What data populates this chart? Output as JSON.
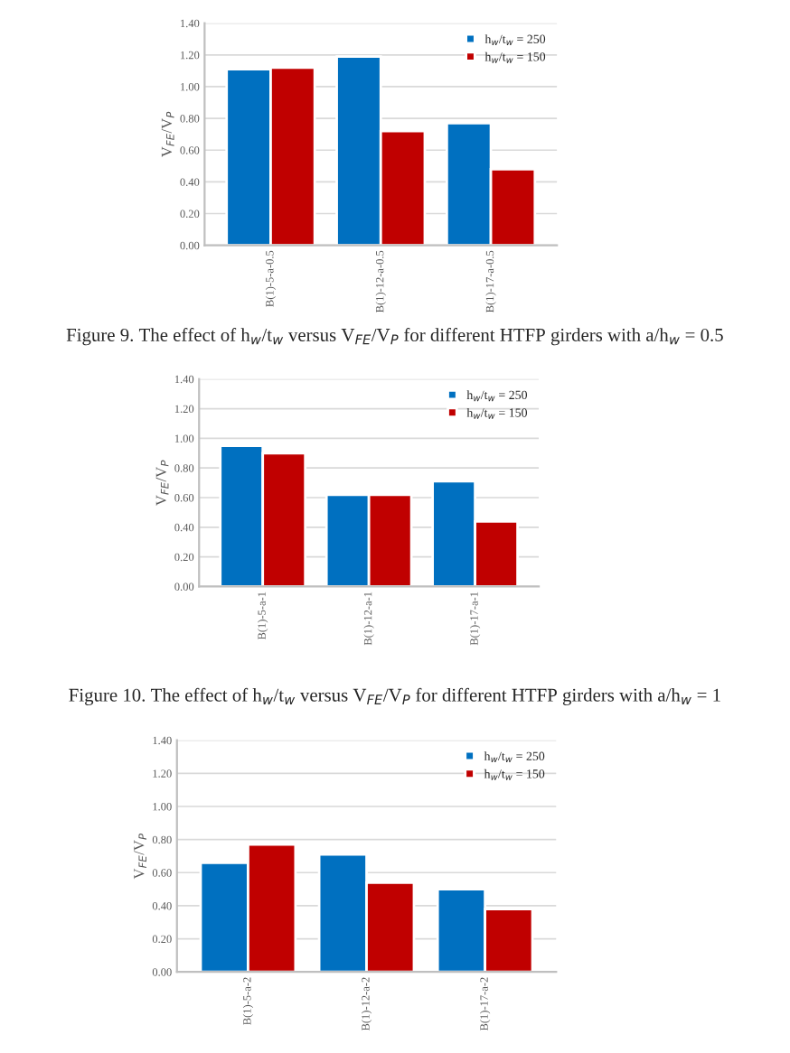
{
  "chart_data": [
    {
      "type": "bar",
      "ylabel": "V$_{FE}$/V$_{P}$",
      "categories": [
        "B(1)-5-a-0.5",
        "B(1)-12-a-0.5",
        "B(1)-17-a-0.5"
      ],
      "series": [
        {
          "name": "h$_{w}$/t$_{w}$ = 250",
          "color": "#0070c0",
          "values": [
            1.11,
            1.19,
            0.77
          ]
        },
        {
          "name": "h$_{w}$/t$_{w}$ = 150",
          "color": "#c00000",
          "values": [
            1.12,
            0.72,
            0.48
          ]
        }
      ],
      "ylim": [
        0,
        1.4
      ],
      "yticks": [
        {
          "value": 0,
          "label": "0.00"
        },
        {
          "value": 0.2,
          "label": "0.20"
        },
        {
          "value": 0.4,
          "label": "0.40"
        },
        {
          "value": 0.6,
          "label": "0.60"
        },
        {
          "value": 0.8,
          "label": "0.80"
        },
        {
          "value": 1.0,
          "label": "1.00"
        },
        {
          "value": 1.2,
          "label": "1.20"
        },
        {
          "value": 1.4,
          "label": "1.40"
        }
      ],
      "grid": "y",
      "legend": "top right",
      "annotations": [
        "Figure 9. The effect of h$_{w}$/t$_{w}$ versus V$_{FE}$/V$_{P}$ for different HTFP girders with a/h$_{w}$ = 0.5"
      ]
    },
    {
      "type": "bar",
      "ylabel": "V$_{FE}$/V$_{P}$",
      "categories": [
        "B(1)-5-a-1",
        "B(1)-12-a-1",
        "B(1)-17-a-1"
      ],
      "series": [
        {
          "name": "h$_{w}$/t$_{w}$ = 250",
          "color": "#0070c0",
          "values": [
            0.95,
            0.62,
            0.71
          ]
        },
        {
          "name": "h$_{w}$/t$_{w}$ = 150",
          "color": "#c00000",
          "values": [
            0.9,
            0.62,
            0.44
          ]
        }
      ],
      "ylim": [
        0,
        1.4
      ],
      "yticks": [
        {
          "value": 0,
          "label": "0.00"
        },
        {
          "value": 0.2,
          "label": "0.20"
        },
        {
          "value": 0.4,
          "label": "0.40"
        },
        {
          "value": 0.6,
          "label": "0.60"
        },
        {
          "value": 0.8,
          "label": "0.80"
        },
        {
          "value": 1.0,
          "label": "1.00"
        },
        {
          "value": 1.2,
          "label": "1.20"
        },
        {
          "value": 1.4,
          "label": "1.40"
        }
      ],
      "grid": "y",
      "legend": "top right",
      "annotations": [
        "Figure 10. The effect of h$_{w}$/t$_{w}$ versus V$_{FE}$/V$_{P}$ for different HTFP girders with a/h$_{w}$ = 1"
      ]
    },
    {
      "type": "bar",
      "ylabel": "V$_{FE}$/V$_{P}$",
      "categories": [
        "B(1)-5-a-2",
        "B(1)-12-a-2",
        "B(1)-17-a-2"
      ],
      "series": [
        {
          "name": "h$_{w}$/t$_{w}$ = 250",
          "color": "#0070c0",
          "values": [
            0.66,
            0.71,
            0.5
          ]
        },
        {
          "name": "h$_{w}$/t$_{w}$ = 150",
          "color": "#c00000",
          "values": [
            0.77,
            0.54,
            0.38
          ]
        }
      ],
      "ylim": [
        0,
        1.4
      ],
      "yticks": [
        {
          "value": 0,
          "label": "0.00"
        },
        {
          "value": 0.2,
          "label": "0.20"
        },
        {
          "value": 0.4,
          "label": "0.40"
        },
        {
          "value": 0.6,
          "label": "0.60"
        },
        {
          "value": 0.8,
          "label": "0.80"
        },
        {
          "value": 1.0,
          "label": "1.00"
        },
        {
          "value": 1.2,
          "label": "1.20"
        },
        {
          "value": 1.4,
          "label": "1.40"
        }
      ],
      "grid": "y",
      "legend": "top right"
    }
  ]
}
